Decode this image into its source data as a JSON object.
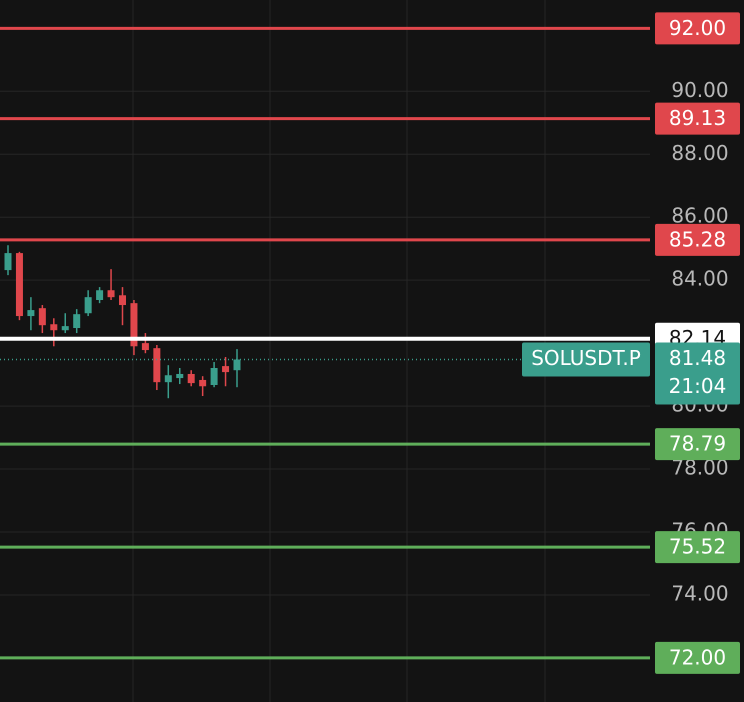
{
  "chart_data": {
    "type": "candlestick",
    "series": {
      "up_color": "#3a9e8c",
      "down_color": "#e0474c",
      "open": [
        84.32,
        84.86,
        82.86,
        83.11,
        82.6,
        82.41,
        82.48,
        82.95,
        83.37,
        83.68,
        83.52,
        83.27,
        82.0,
        81.84,
        80.76,
        80.89,
        81.02,
        80.83,
        80.67,
        81.27,
        81.14
      ],
      "high": [
        85.11,
        84.9,
        83.46,
        83.21,
        82.79,
        82.95,
        83.08,
        83.68,
        83.78,
        84.35,
        83.78,
        83.37,
        82.32,
        81.94,
        81.3,
        81.21,
        81.14,
        80.95,
        81.4,
        81.56,
        81.81
      ],
      "low": [
        84.16,
        82.73,
        82.41,
        82.32,
        81.9,
        82.32,
        82.32,
        82.86,
        83.27,
        83.37,
        82.57,
        81.62,
        81.68,
        80.51,
        80.25,
        80.7,
        80.63,
        80.32,
        80.6,
        80.63,
        80.6
      ],
      "close": [
        84.86,
        82.86,
        83.05,
        82.57,
        82.41,
        82.54,
        82.92,
        83.46,
        83.68,
        83.46,
        83.21,
        81.9,
        81.78,
        80.76,
        80.98,
        81.02,
        80.73,
        80.63,
        81.21,
        81.08,
        81.48
      ]
    },
    "ylim": [
      70.6,
      92.9
    ],
    "yticks": [
      {
        "value": 74,
        "label": "74.00"
      },
      {
        "value": 76,
        "label": "76.00"
      },
      {
        "value": 78,
        "label": "78.00"
      },
      {
        "value": 80,
        "label": "80.00"
      },
      {
        "value": 84,
        "label": "84.00"
      },
      {
        "value": 86,
        "label": "86.00"
      },
      {
        "value": 88,
        "label": "88.00"
      },
      {
        "value": 90,
        "label": "90.00"
      }
    ],
    "grid": true,
    "levels": [
      {
        "value": 92,
        "label": "92.00",
        "color": "#e0474c"
      },
      {
        "value": 89.13,
        "label": "89.13",
        "color": "#e0474c"
      },
      {
        "value": 85.28,
        "label": "85.28",
        "color": "#e0474c"
      },
      {
        "value": 82.14,
        "label": "82.14",
        "color": "#ffffff"
      },
      {
        "value": 78.79,
        "label": "78.79",
        "color": "#5fae5a"
      },
      {
        "value": 75.52,
        "label": "75.52",
        "color": "#5fae5a"
      },
      {
        "value": 72,
        "label": "72.00",
        "color": "#5fae5a"
      }
    ],
    "last_price": {
      "value": 81.48,
      "label": "81.48",
      "symbol": "SOLUSDT.P",
      "countdown": "21:04",
      "color": "#3a9e8c"
    }
  }
}
